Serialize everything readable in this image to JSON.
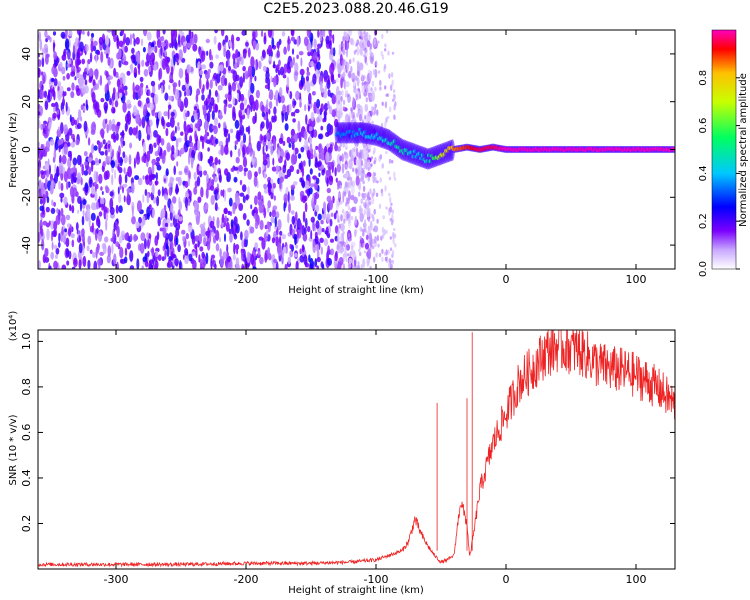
{
  "title": "C2E5.2023.088.20.46.G19",
  "chart_data": [
    {
      "type": "heatmap",
      "title": "",
      "xlabel": "Height of straight line (km)",
      "ylabel": "Frequency (Hz)",
      "xlim": [
        -360,
        130
      ],
      "ylim": [
        -50,
        50
      ],
      "xticks": [
        -300,
        -200,
        -100,
        0,
        100
      ],
      "yticks": [
        -40,
        -20,
        0,
        20,
        40
      ],
      "colorbar": {
        "label": "Normalized spectral amplitude",
        "range": [
          0,
          1
        ],
        "ticks": [
          "0.0",
          "0.2",
          "0.4",
          "0.6",
          "0.8"
        ],
        "colors": [
          "#ffffff",
          "#7a00ff",
          "#0000ff",
          "#00c8ff",
          "#00ff60",
          "#c8ff00",
          "#ffc000",
          "#ff0000",
          "#ff00c0"
        ]
      },
      "ridge": {
        "x": [
          -130,
          -120,
          -110,
          -100,
          -90,
          -80,
          -70,
          -60,
          -50,
          -40,
          -30,
          -20,
          -10,
          0,
          20,
          40,
          60,
          80,
          100,
          130
        ],
        "y": [
          7,
          7,
          7,
          6,
          4,
          0,
          -2,
          -4,
          -2,
          0,
          1,
          0,
          1,
          0,
          0,
          0,
          0,
          0,
          0,
          0
        ],
        "amplitude": [
          0.35,
          0.35,
          0.4,
          0.4,
          0.45,
          0.5,
          0.4,
          0.45,
          0.7,
          0.85,
          0.9,
          0.95,
          0.95,
          1.0,
          1.0,
          1.0,
          1.0,
          1.0,
          1.0,
          1.0
        ]
      },
      "noise_region_x": [
        -360,
        -130
      ]
    },
    {
      "type": "line",
      "title": "",
      "xlabel": "Height of straight line (km)",
      "ylabel": "SNR (10 * v/v)",
      "scale_note": "(x10⁴)",
      "xlim": [
        -360,
        130
      ],
      "ylim": [
        0,
        1.05
      ],
      "xticks": [
        -300,
        -200,
        -100,
        0,
        100
      ],
      "yticks": [
        "0.2",
        "0.4",
        "0.6",
        "0.8",
        "1.0"
      ],
      "series": [
        {
          "color": "#ee2222",
          "x": [
            -360,
            -300,
            -250,
            -200,
            -150,
            -120,
            -100,
            -90,
            -80,
            -75,
            -70,
            -65,
            -60,
            -55,
            -50,
            -45,
            -40,
            -35,
            -30,
            -28,
            -25,
            -20,
            -15,
            -10,
            -5,
            0,
            5,
            10,
            20,
            30,
            40,
            50,
            60,
            70,
            80,
            90,
            100,
            110,
            120,
            130
          ],
          "y": [
            0.02,
            0.02,
            0.02,
            0.025,
            0.025,
            0.03,
            0.04,
            0.06,
            0.08,
            0.12,
            0.22,
            0.15,
            0.1,
            0.06,
            0.03,
            0.04,
            0.06,
            0.3,
            0.2,
            0.05,
            0.15,
            0.35,
            0.45,
            0.55,
            0.62,
            0.68,
            0.75,
            0.82,
            0.88,
            0.95,
            0.98,
            0.97,
            0.95,
            0.9,
            0.88,
            0.87,
            0.85,
            0.82,
            0.78,
            0.72
          ]
        }
      ]
    }
  ]
}
